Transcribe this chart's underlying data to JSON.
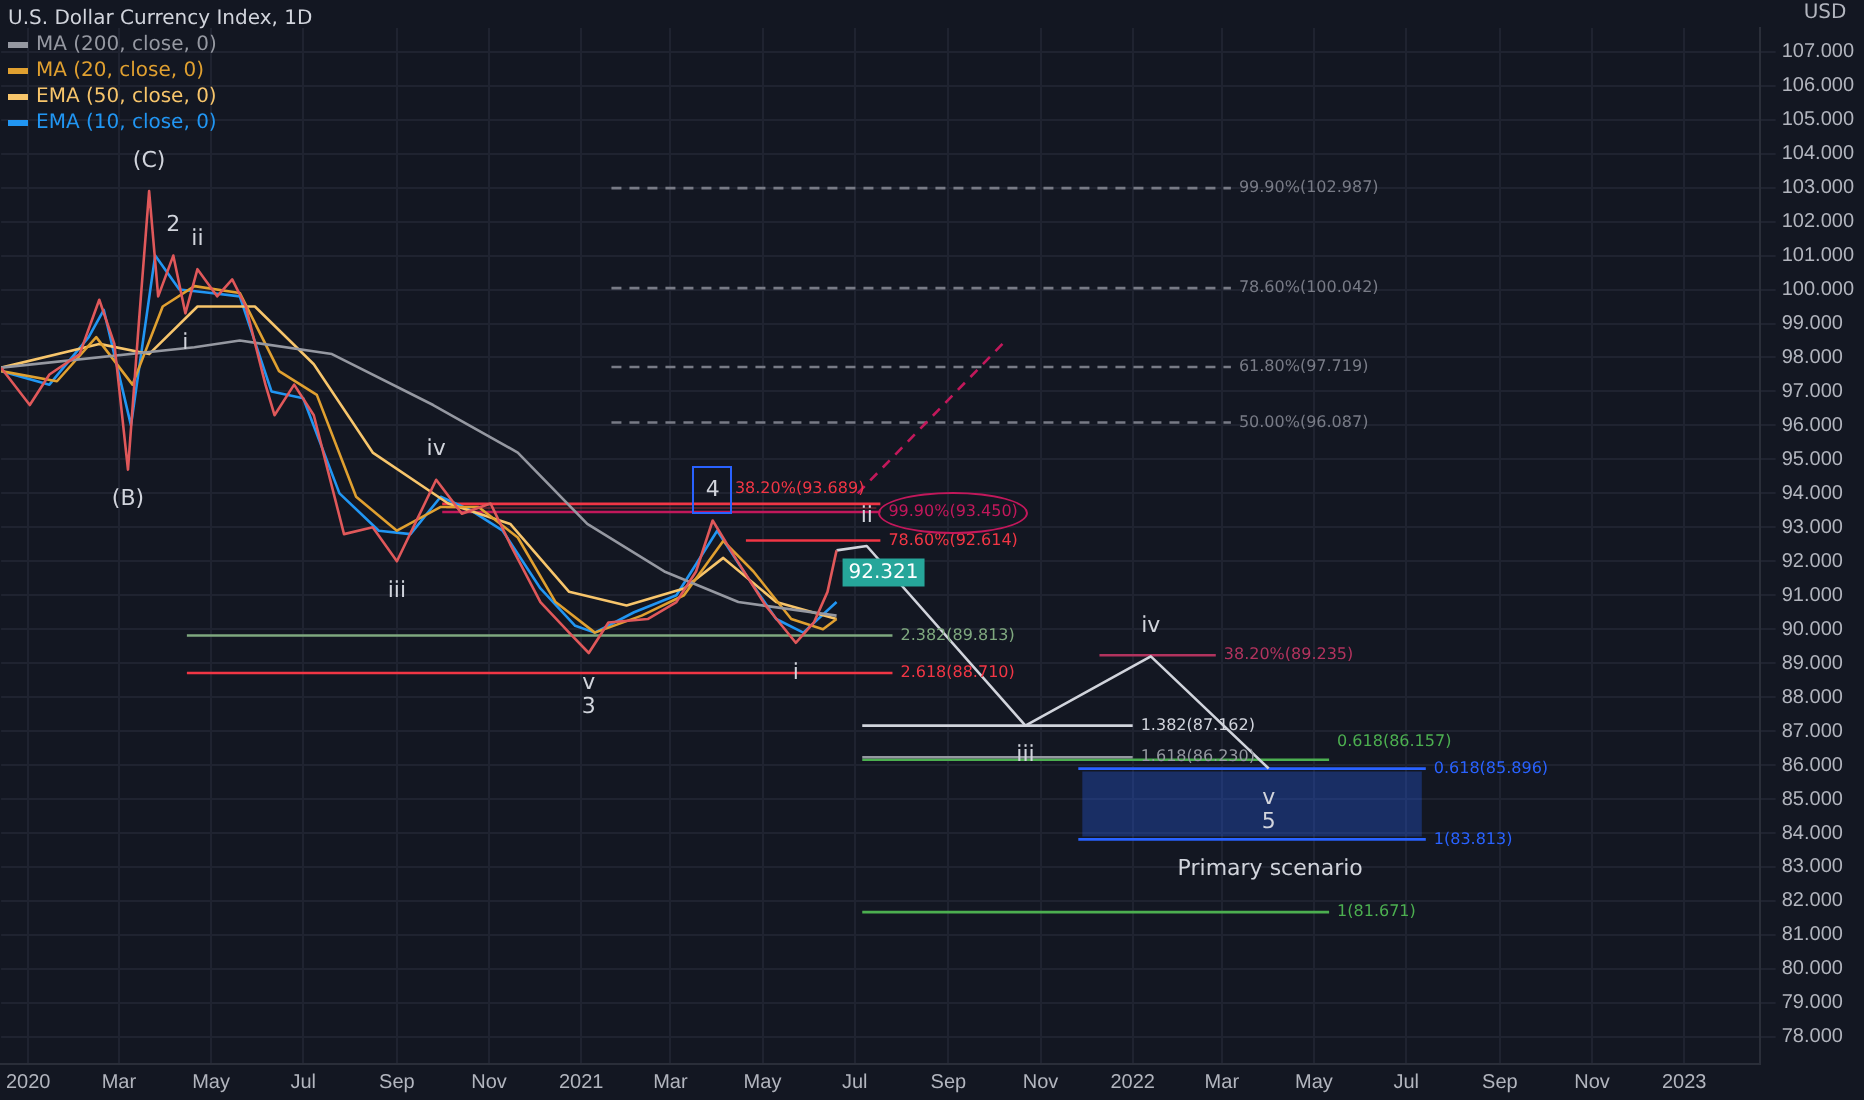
{
  "chart_data": {
    "type": "line",
    "title": "U.S. Dollar Currency Index, 1D",
    "ylabel": "USD",
    "legend": "top left",
    "grid": true,
    "marker": "none",
    "xlim": [
      "2019-12-14",
      "2023-02-20"
    ],
    "xticks": [
      {
        "value": "2020-01-01",
        "label": "2020"
      },
      {
        "value": "2020-03-01",
        "label": "Mar"
      },
      {
        "value": "2020-05-01",
        "label": "May"
      },
      {
        "value": "2020-07-01",
        "label": "Jul"
      },
      {
        "value": "2020-09-01",
        "label": "Sep"
      },
      {
        "value": "2020-11-01",
        "label": "Nov"
      },
      {
        "value": "2021-01-01",
        "label": "2021"
      },
      {
        "value": "2021-03-01",
        "label": "Mar"
      },
      {
        "value": "2021-05-01",
        "label": "May"
      },
      {
        "value": "2021-07-01",
        "label": "Jul"
      },
      {
        "value": "2021-09-01",
        "label": "Sep"
      },
      {
        "value": "2021-11-01",
        "label": "Nov"
      },
      {
        "value": "2022-01-01",
        "label": "2022"
      },
      {
        "value": "2022-03-01",
        "label": "Mar"
      },
      {
        "value": "2022-05-01",
        "label": "May"
      },
      {
        "value": "2022-07-01",
        "label": "Jul"
      },
      {
        "value": "2022-09-01",
        "label": "Sep"
      },
      {
        "value": "2022-11-01",
        "label": "Nov"
      },
      {
        "value": "2023-01-01",
        "label": "2023"
      }
    ],
    "ylim": [
      77.2,
      107.7
    ],
    "yticks": [
      {
        "value": 78,
        "label": "78.000"
      },
      {
        "value": 79,
        "label": "79.000"
      },
      {
        "value": 80,
        "label": "80.000"
      },
      {
        "value": 81,
        "label": "81.000"
      },
      {
        "value": 82,
        "label": "82.000"
      },
      {
        "value": 83,
        "label": "83.000"
      },
      {
        "value": 84,
        "label": "84.000"
      },
      {
        "value": 85,
        "label": "85.000"
      },
      {
        "value": 86,
        "label": "86.000"
      },
      {
        "value": 87,
        "label": "87.000"
      },
      {
        "value": 88,
        "label": "88.000"
      },
      {
        "value": 89,
        "label": "89.000"
      },
      {
        "value": 90,
        "label": "90.000"
      },
      {
        "value": 91,
        "label": "91.000"
      },
      {
        "value": 92,
        "label": "92.000"
      },
      {
        "value": 93,
        "label": "93.000"
      },
      {
        "value": 94,
        "label": "94.000"
      },
      {
        "value": 95,
        "label": "95.000"
      },
      {
        "value": 96,
        "label": "96.000"
      },
      {
        "value": 97,
        "label": "97.000"
      },
      {
        "value": 98,
        "label": "98.000"
      },
      {
        "value": 99,
        "label": "99.000"
      },
      {
        "value": 100,
        "label": "100.000"
      },
      {
        "value": 101,
        "label": "101.000"
      },
      {
        "value": 102,
        "label": "102.000"
      },
      {
        "value": 103,
        "label": "103.000"
      },
      {
        "value": 104,
        "label": "104.000"
      },
      {
        "value": 105,
        "label": "105.000"
      },
      {
        "value": 106,
        "label": "106.000"
      },
      {
        "value": 107,
        "label": "107.000"
      }
    ],
    "series": [
      {
        "color": "#e0585a",
        "x": [
          "2019-12-14",
          "2020-01-02",
          "2020-01-15",
          "2020-02-04",
          "2020-02-17",
          "2020-02-27",
          "2020-03-07",
          "2020-03-14",
          "2020-03-21",
          "2020-03-27",
          "2020-04-06",
          "2020-04-14",
          "2020-04-22",
          "2020-05-05",
          "2020-05-15",
          "2020-05-24",
          "2020-06-06",
          "2020-06-12",
          "2020-06-25",
          "2020-07-08",
          "2020-07-28",
          "2020-08-16",
          "2020-09-01",
          "2020-09-27",
          "2020-10-14",
          "2020-11-02",
          "2020-11-15",
          "2020-12-05",
          "2020-12-24",
          "2021-01-06",
          "2021-01-19",
          "2021-02-14",
          "2021-03-05",
          "2021-03-18",
          "2021-03-29",
          "2021-04-13",
          "2021-05-03",
          "2021-05-23",
          "2021-06-04",
          "2021-06-13",
          "2021-06-19"
        ],
        "values": [
          97.7,
          96.6,
          97.5,
          98.1,
          99.7,
          98.4,
          94.7,
          98.9,
          102.9,
          99.8,
          101.0,
          99.3,
          100.6,
          99.8,
          100.3,
          99.5,
          97.2,
          96.3,
          97.2,
          96.3,
          92.8,
          93.0,
          92.0,
          94.4,
          93.4,
          93.7,
          92.5,
          90.8,
          89.9,
          89.3,
          90.2,
          90.3,
          90.8,
          91.7,
          93.2,
          92.1,
          90.7,
          89.6,
          90.2,
          91.1,
          92.321
        ],
        "value_labels": [
          null,
          null,
          null,
          null,
          null,
          null,
          null,
          null,
          null,
          null,
          null,
          null,
          null,
          null,
          null,
          null,
          null,
          null,
          null,
          null,
          null,
          null,
          null,
          null,
          null,
          null,
          null,
          null,
          null,
          null,
          null,
          null,
          null,
          null,
          null,
          null,
          null,
          null,
          null,
          null,
          "92.321"
        ]
      },
      {
        "name": "MA (200, close, 0)",
        "color": "#9598a1",
        "x": [
          "2019-12-14",
          "2020-04-20",
          "2020-05-20",
          "2020-07-20",
          "2020-09-25",
          "2020-11-20",
          "2021-01-05",
          "2021-02-25",
          "2021-04-15",
          "2021-06-19"
        ],
        "values": [
          97.7,
          98.3,
          98.5,
          98.1,
          96.6,
          95.2,
          93.1,
          91.7,
          90.8,
          90.4
        ]
      },
      {
        "name": "MA (20, close, 0)",
        "color": "#e0a030",
        "x": [
          "2019-12-14",
          "2020-01-20",
          "2020-02-15",
          "2020-03-10",
          "2020-03-30",
          "2020-04-20",
          "2020-05-20",
          "2020-06-15",
          "2020-07-10",
          "2020-08-05",
          "2020-09-01",
          "2020-09-30",
          "2020-10-25",
          "2020-11-20",
          "2020-12-15",
          "2021-01-10",
          "2021-02-10",
          "2021-03-10",
          "2021-04-05",
          "2021-04-25",
          "2021-05-20",
          "2021-06-10",
          "2021-06-19"
        ],
        "values": [
          97.6,
          97.3,
          98.6,
          97.2,
          99.5,
          100.1,
          99.9,
          97.6,
          96.9,
          93.9,
          92.9,
          93.6,
          93.6,
          92.7,
          90.8,
          89.9,
          90.4,
          91.0,
          92.6,
          91.7,
          90.3,
          90.0,
          90.3
        ]
      },
      {
        "name": "EMA (50, close, 0)",
        "color": "#f7c56b",
        "x": [
          "2019-12-14",
          "2020-02-17",
          "2020-03-21",
          "2020-04-22",
          "2020-05-30",
          "2020-07-08",
          "2020-08-16",
          "2020-10-05",
          "2020-11-15",
          "2020-12-24",
          "2021-01-31",
          "2021-03-10",
          "2021-04-05",
          "2021-05-10",
          "2021-06-19"
        ],
        "values": [
          97.7,
          98.4,
          98.1,
          99.5,
          99.5,
          97.8,
          95.2,
          93.7,
          93.1,
          91.1,
          90.7,
          91.2,
          92.1,
          90.8,
          90.3
        ]
      },
      {
        "name": "EMA (10, close, 0)",
        "color": "#2196f3",
        "x": [
          "2019-12-14",
          "2020-01-15",
          "2020-02-10",
          "2020-02-20",
          "2020-03-09",
          "2020-03-25",
          "2020-04-10",
          "2020-05-01",
          "2020-05-20",
          "2020-06-10",
          "2020-07-01",
          "2020-07-25",
          "2020-08-20",
          "2020-09-10",
          "2020-09-30",
          "2020-10-20",
          "2020-11-10",
          "2020-12-05",
          "2020-12-28",
          "2021-01-10",
          "2021-02-05",
          "2021-03-05",
          "2021-04-01",
          "2021-04-20",
          "2021-05-10",
          "2021-05-28",
          "2021-06-19"
        ],
        "values": [
          97.6,
          97.2,
          98.6,
          99.4,
          96.0,
          101.0,
          100.0,
          99.9,
          99.8,
          97.0,
          96.8,
          94.0,
          92.9,
          92.8,
          93.9,
          93.5,
          92.9,
          91.2,
          90.1,
          89.9,
          90.5,
          91.0,
          92.9,
          91.6,
          90.3,
          89.9,
          90.8
        ]
      },
      {
        "color": "#d1d4dc",
        "x": [
          "2021-06-19",
          "2021-07-09",
          "2021-10-22",
          "2022-01-13",
          "2022-04-01"
        ],
        "values": [
          92.321,
          92.45,
          87.162,
          89.2,
          85.9
        ]
      },
      {
        "color": "#c2185b",
        "line_style": "dashed",
        "x": [
          "2021-07-03",
          "2021-10-09"
        ],
        "values": [
          94.0,
          98.5
        ]
      },
      {
        "name": "99.90%(102.987)",
        "color": "#787b86",
        "line_style": "dashed",
        "x": [
          "2021-01-21",
          "2022-03-07"
        ],
        "values": [
          102.987,
          102.987
        ]
      },
      {
        "name": "78.60%(100.042)",
        "color": "#787b86",
        "line_style": "dashed",
        "x": [
          "2021-01-21",
          "2022-03-07"
        ],
        "values": [
          100.042,
          100.042
        ]
      },
      {
        "name": "61.80%(97.719)",
        "color": "#787b86",
        "line_style": "dashed",
        "x": [
          "2021-01-21",
          "2022-03-07"
        ],
        "values": [
          97.719,
          97.719
        ]
      },
      {
        "name": "50.00%(96.087)",
        "color": "#787b86",
        "line_style": "dashed",
        "x": [
          "2021-01-21",
          "2022-03-07"
        ],
        "values": [
          96.087,
          96.087
        ]
      },
      {
        "name": "38.20%(93.689)",
        "color": "#f23645",
        "x": [
          "2020-10-01",
          "2021-07-18"
        ],
        "values": [
          93.689,
          93.689
        ],
        "lower": [
          93.45,
          93.45
        ],
        "upper": [
          93.689,
          93.689
        ]
      },
      {
        "name": "99.90%(93.450)",
        "color": "#c2185b",
        "x": [
          "2020-10-01",
          "2021-07-18"
        ],
        "values": [
          93.45,
          93.45
        ]
      },
      {
        "name": "78.60%(92.614)",
        "color": "#f23645",
        "x": [
          "2021-04-20",
          "2021-07-18"
        ],
        "values": [
          92.614,
          92.614
        ]
      },
      {
        "name": "2.382(89.813)",
        "color": "#7fa87f",
        "x": [
          "2020-04-15",
          "2021-07-26"
        ],
        "values": [
          89.813,
          89.813
        ]
      },
      {
        "name": "2.618(88.710)",
        "color": "#f23645",
        "x": [
          "2020-04-15",
          "2021-07-26"
        ],
        "values": [
          88.71,
          88.71
        ]
      },
      {
        "name": "1.382(87.162)",
        "color": "#d1d4dc",
        "x": [
          "2021-07-06",
          "2022-01-01"
        ],
        "values": [
          87.162,
          87.162
        ]
      },
      {
        "name": "1.618(86.230)",
        "color": "#9598a1",
        "x": [
          "2021-07-06",
          "2022-01-01"
        ],
        "values": [
          86.23,
          86.23
        ]
      },
      {
        "name": "0.618(86.157)",
        "color": "#4caf50",
        "x": [
          "2021-07-06",
          "2022-05-11"
        ],
        "values": [
          86.157,
          86.157
        ]
      },
      {
        "name": "38.20%(89.235)",
        "color": "#b2335e",
        "x": [
          "2021-12-10",
          "2022-02-25"
        ],
        "values": [
          89.235,
          89.235
        ]
      },
      {
        "name": "0.618(85.896)",
        "color": "#2962ff",
        "x": [
          "2021-11-26",
          "2022-07-14"
        ],
        "values": [
          85.896,
          85.896
        ]
      },
      {
        "name": "1(83.813)",
        "color": "#2962ff",
        "x": [
          "2021-11-26",
          "2022-07-14"
        ],
        "values": [
          83.813,
          83.813
        ],
        "lower": [
          83.813,
          83.813
        ],
        "upper": [
          85.896,
          85.896
        ]
      },
      {
        "name": "1(81.671)",
        "color": "#4caf50",
        "x": [
          "2021-07-06",
          "2022-05-11"
        ],
        "values": [
          81.671,
          81.671
        ]
      }
    ],
    "annotations": [
      {
        "text": "(C)",
        "x": "2020-03-21",
        "y": 102.9
      },
      {
        "text": "(B)",
        "x": "2020-03-07",
        "y": 94.7
      },
      {
        "text": "2",
        "x": "2020-04-06",
        "y": 101.0
      },
      {
        "text": "ii",
        "x": "2020-04-22",
        "y": 100.6
      },
      {
        "text": "i",
        "x": "2020-04-14",
        "y": 99.3
      },
      {
        "text": "iv",
        "x": "2020-09-27",
        "y": 94.4
      },
      {
        "text": "iii",
        "x": "2020-09-01",
        "y": 92.0
      },
      {
        "text": "v",
        "x": "2021-01-06",
        "y": 89.3
      },
      {
        "text": "3",
        "x": "2021-01-06",
        "y": 89.3
      },
      {
        "text": "4",
        "x": "2021-03-29",
        "y": 93.2
      },
      {
        "text": "i",
        "x": "2021-05-23",
        "y": 89.6
      },
      {
        "text": "ii",
        "x": "2021-07-09",
        "y": 92.45
      },
      {
        "text": "iii",
        "x": "2021-10-22",
        "y": 87.162
      },
      {
        "text": "iv",
        "x": "2022-01-13",
        "y": 89.2
      },
      {
        "text": "v",
        "x": "2022-04-01",
        "y": 85.9
      },
      {
        "text": "5",
        "x": "2022-04-01",
        "y": 85.9
      },
      {
        "text": "Primary scenario",
        "x": "2022-04-02",
        "y": 83.813
      }
    ]
  }
}
